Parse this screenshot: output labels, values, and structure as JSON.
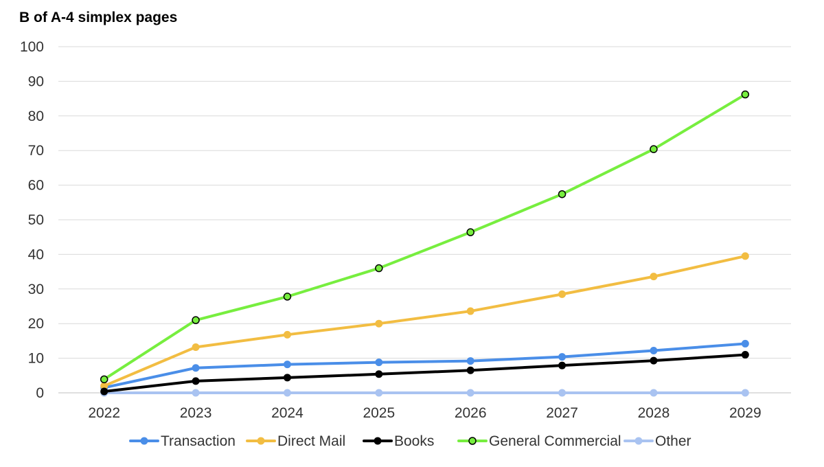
{
  "chart_data": {
    "type": "line",
    "title": "B of A-4 simplex pages",
    "xlabel": "",
    "ylabel": "",
    "categories": [
      "2022",
      "2023",
      "2024",
      "2025",
      "2026",
      "2027",
      "2028",
      "2029"
    ],
    "ylim": [
      0,
      100
    ],
    "yticks": [
      "0",
      "10",
      "20",
      "30",
      "40",
      "50",
      "60",
      "70",
      "80",
      "90",
      "100"
    ],
    "grid": true,
    "legend_position": "bottom",
    "series": [
      {
        "name": "Transaction",
        "color": "#4a8ee8",
        "marker": "filled",
        "values": [
          1.5,
          7.2,
          8.2,
          8.8,
          9.2,
          10.4,
          12.2,
          14.2
        ]
      },
      {
        "name": "Direct Mail",
        "color": "#f2bd42",
        "marker": "filled",
        "values": [
          2.0,
          13.2,
          16.8,
          20.0,
          23.6,
          28.5,
          33.6,
          39.5
        ]
      },
      {
        "name": "Books",
        "color": "#000000",
        "marker": "filled",
        "values": [
          0.4,
          3.4,
          4.4,
          5.4,
          6.5,
          7.9,
          9.3,
          11.0
        ]
      },
      {
        "name": "General Commercial",
        "color": "#77ee3f",
        "marker": "outlined",
        "values": [
          3.9,
          21.0,
          27.8,
          36.0,
          46.4,
          57.4,
          70.4,
          86.2
        ]
      },
      {
        "name": "Other",
        "color": "#a9c3f1",
        "marker": "filled",
        "values": [
          0,
          0,
          0,
          0,
          0,
          0,
          0,
          0
        ]
      }
    ]
  }
}
